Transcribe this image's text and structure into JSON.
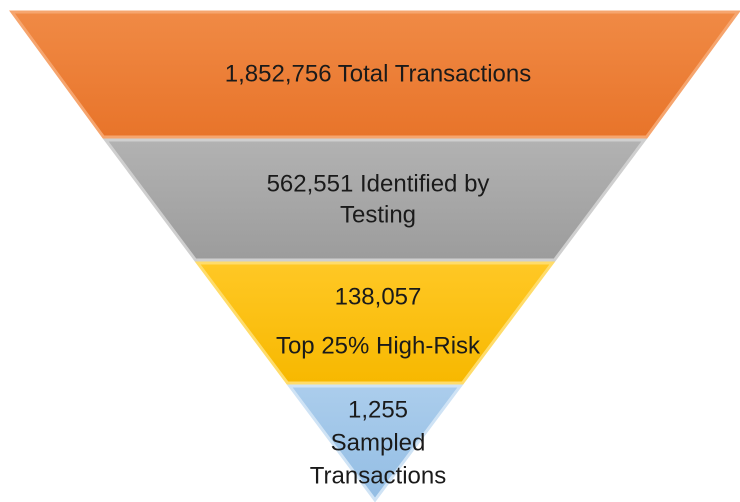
{
  "funnel": [
    {
      "lines": [
        "1,852,756 Total Transactions"
      ]
    },
    {
      "lines": [
        "562,551 Identified by",
        "Testing"
      ]
    },
    {
      "lines": [
        "138,057",
        "Top 25% High-Risk"
      ]
    },
    {
      "lines": [
        "1,255",
        "Sampled",
        "Transactions"
      ]
    }
  ]
}
